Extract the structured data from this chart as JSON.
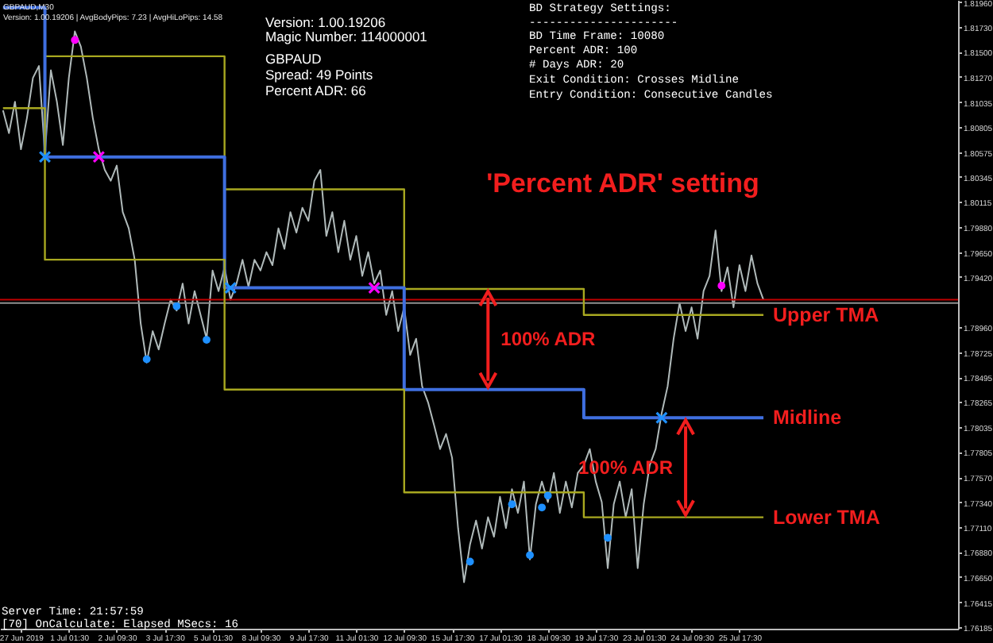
{
  "chart_data": {
    "type": "line",
    "title": "GBPAUD,M30",
    "subtitle": "Version: 1.00.19206 | AvgBodyPips: 7.23 | AvgHiLoPips: 14.58",
    "categories": [
      null,
      null,
      null,
      "27 Jun 2019",
      null,
      null,
      null,
      null,
      null,
      null,
      null,
      "1 Jul 01:30",
      null,
      null,
      null,
      null,
      null,
      null,
      null,
      "2 Jul 09:30",
      null,
      null,
      null,
      null,
      null,
      null,
      null,
      "3 Jul 17:30",
      null,
      null,
      null,
      null,
      null,
      null,
      null,
      "5 Jul 01:30",
      null,
      null,
      null,
      null,
      null,
      null,
      null,
      "8 Jul 09:30",
      null,
      null,
      null,
      null,
      null,
      null,
      null,
      "9 Jul 17:30",
      null,
      null,
      null,
      null,
      null,
      null,
      null,
      "11 Jul 01:30",
      null,
      null,
      null,
      null,
      null,
      null,
      null,
      "12 Jul 09:30",
      null,
      null,
      null,
      null,
      null,
      null,
      null,
      "15 Jul 17:30",
      null,
      null,
      null,
      null,
      null,
      null,
      null,
      "17 Jul 01:30",
      null,
      null,
      null,
      null,
      null,
      null,
      null,
      "18 Jul 09:30",
      null,
      null,
      null,
      null,
      null,
      null,
      null,
      "19 Jul 17:30",
      null,
      null,
      null,
      null,
      null,
      null,
      null,
      "23 Jul 01:30",
      null,
      null,
      null,
      null,
      null,
      null,
      null,
      "24 Jul 09:30",
      null,
      null,
      null,
      null,
      null,
      null,
      null,
      "25 Jul 17:30",
      null,
      null,
      null,
      null,
      null,
      null,
      null,
      null,
      null,
      null,
      null,
      null,
      null,
      null,
      null,
      null,
      null,
      null,
      null,
      null,
      null,
      null,
      null,
      null,
      null,
      null,
      null,
      null,
      null,
      null,
      null,
      null,
      null,
      null,
      null,
      null
    ],
    "series": [
      {
        "color": "#b0baba",
        "values": [
          1.8096,
          1.8075,
          1.8104,
          1.806,
          1.8089,
          1.8126,
          1.8137,
          1.8056,
          1.8133,
          1.8104,
          1.8064,
          1.8126,
          1.8169,
          1.8155,
          1.8126,
          1.8089,
          1.806,
          1.8041,
          1.8031,
          1.8045,
          1.8002,
          1.7987,
          1.7958,
          1.7899,
          1.7863,
          1.7892,
          1.7875,
          1.7899,
          1.7921,
          1.7911,
          1.7936,
          1.7899,
          1.7929,
          1.7907,
          1.7885,
          1.7948,
          1.7929,
          1.7951,
          1.7921,
          1.7936,
          1.7958,
          1.7933,
          1.7958,
          1.7948,
          1.7965,
          1.7953,
          1.7987,
          1.7968,
          1.8002,
          1.7983,
          1.8006,
          1.7994,
          1.8031,
          1.8041,
          1.798,
          1.8002,
          1.7965,
          1.7994,
          1.7958,
          1.798,
          1.7943,
          1.7965,
          1.7936,
          1.7948,
          1.7907,
          1.7929,
          1.7892,
          1.7914,
          1.787,
          1.7885,
          1.7841,
          1.7826,
          1.7805,
          1.7783,
          1.7797,
          1.7775,
          1.771,
          1.766,
          1.7695,
          1.7717,
          1.7691,
          1.772,
          1.7702,
          1.7739,
          1.771,
          1.7746,
          1.7724,
          1.7753,
          1.7681,
          1.7732,
          1.7753,
          1.7734,
          1.7761,
          1.7724,
          1.7753,
          1.7729,
          1.7761,
          1.7768,
          1.7783,
          1.7753,
          1.7734,
          1.7673,
          1.7732,
          1.7753,
          1.772,
          1.7746,
          1.7673,
          1.7732,
          1.7768,
          1.7783,
          1.7816,
          1.7841,
          1.7885,
          1.7918,
          1.7892,
          1.7914,
          1.7885,
          1.7929,
          1.7943,
          1.7985,
          1.7929,
          1.7951,
          1.7914,
          1.7953,
          1.7929,
          1.7962,
          1.7936,
          1.7921,
          null,
          null,
          null,
          null,
          null,
          null,
          null,
          null,
          null,
          null,
          null,
          null,
          null,
          null,
          null,
          null,
          null,
          null,
          null,
          null,
          null,
          null,
          null,
          null,
          null,
          null,
          null,
          null,
          null,
          null,
          null,
          null
        ]
      },
      {
        "name": "Upper TMA",
        "type": "step",
        "color": "#a8a820",
        "values": [
          null,
          null,
          null,
          null,
          null,
          null,
          null,
          1.8146,
          1.8146,
          1.8146,
          1.8146,
          1.8146,
          1.8146,
          1.8146,
          1.8146,
          1.8146,
          1.8146,
          1.8146,
          1.8146,
          1.8146,
          1.8146,
          1.8146,
          1.8146,
          1.8146,
          1.8146,
          1.8146,
          1.8146,
          1.8146,
          1.8146,
          1.8146,
          1.8146,
          1.8146,
          1.8146,
          1.8146,
          1.8146,
          1.8146,
          1.8146,
          1.8023,
          1.8023,
          1.8023,
          1.8023,
          1.8023,
          1.8023,
          1.8023,
          1.8023,
          1.8023,
          1.8023,
          1.8023,
          1.8023,
          1.8023,
          1.8023,
          1.8023,
          1.8023,
          1.8023,
          1.8023,
          1.8023,
          1.8023,
          1.8023,
          1.8023,
          1.8023,
          1.8023,
          1.8023,
          1.8023,
          1.8023,
          1.8023,
          1.8023,
          1.8023,
          1.7931,
          1.7931,
          1.7931,
          1.7931,
          1.7931,
          1.7931,
          1.7931,
          1.7931,
          1.7931,
          1.7931,
          1.7931,
          1.7931,
          1.7931,
          1.7931,
          1.7931,
          1.7931,
          1.7931,
          1.7931,
          1.7931,
          1.7931,
          1.7931,
          1.7931,
          1.7931,
          1.7931,
          1.7931,
          1.7931,
          1.7931,
          1.7931,
          1.7931,
          1.7931,
          1.7907,
          1.7907,
          1.7907,
          1.7907,
          1.7907,
          1.7907,
          1.7907,
          1.7907,
          1.7907,
          1.7907,
          1.7907,
          1.7907,
          1.7907,
          1.7907,
          1.7907,
          1.7907,
          1.7907,
          1.7907,
          1.7907,
          1.7907,
          1.7907,
          1.7907,
          1.7907,
          1.7907,
          1.7907,
          1.7907,
          1.7907,
          1.7907,
          1.7907,
          1.7907,
          1.7907,
          null,
          null,
          null,
          null,
          null,
          null,
          null,
          null,
          null,
          null,
          null,
          null,
          null,
          null,
          null,
          null,
          null,
          null,
          null,
          null,
          null,
          null,
          null,
          null,
          null,
          null,
          null,
          null,
          null,
          null,
          null,
          null
        ]
      },
      {
        "name": "Midline",
        "type": "step",
        "color": "#3f6fe0",
        "values": [
          1.8191,
          1.8191,
          1.8191,
          1.8191,
          1.8191,
          1.8191,
          1.8191,
          1.8053,
          1.8053,
          1.8053,
          1.8053,
          1.8053,
          1.8053,
          1.8053,
          1.8053,
          1.8053,
          1.8053,
          1.8053,
          1.8053,
          1.8053,
          1.8053,
          1.8053,
          1.8053,
          1.8053,
          1.8053,
          1.8053,
          1.8053,
          1.8053,
          1.8053,
          1.8053,
          1.8053,
          1.8053,
          1.8053,
          1.8053,
          1.8053,
          1.8053,
          1.8053,
          1.7932,
          1.7932,
          1.7932,
          1.7932,
          1.7932,
          1.7932,
          1.7932,
          1.7932,
          1.7932,
          1.7932,
          1.7932,
          1.7932,
          1.7932,
          1.7932,
          1.7932,
          1.7932,
          1.7932,
          1.7932,
          1.7932,
          1.7932,
          1.7932,
          1.7932,
          1.7932,
          1.7932,
          1.7932,
          1.7932,
          1.7932,
          1.7932,
          1.7932,
          1.7932,
          1.7838,
          1.7838,
          1.7838,
          1.7838,
          1.7838,
          1.7838,
          1.7838,
          1.7838,
          1.7838,
          1.7838,
          1.7838,
          1.7838,
          1.7838,
          1.7838,
          1.7838,
          1.7838,
          1.7838,
          1.7838,
          1.7838,
          1.7838,
          1.7838,
          1.7838,
          1.7838,
          1.7838,
          1.7838,
          1.7838,
          1.7838,
          1.7838,
          1.7838,
          1.7838,
          1.7812,
          1.7812,
          1.7812,
          1.7812,
          1.7812,
          1.7812,
          1.7812,
          1.7812,
          1.7812,
          1.7812,
          1.7812,
          1.7812,
          1.7812,
          1.7812,
          1.7812,
          1.7812,
          1.7812,
          1.7812,
          1.7812,
          1.7812,
          1.7812,
          1.7812,
          1.7812,
          1.7812,
          1.7812,
          1.7812,
          1.7812,
          1.7812,
          1.7812,
          1.7812,
          1.7812,
          null,
          null,
          null,
          null,
          null,
          null,
          null,
          null,
          null,
          null,
          null,
          null,
          null,
          null,
          null,
          null,
          null,
          null,
          null,
          null,
          null,
          null,
          null,
          null,
          null,
          null,
          null,
          null,
          null,
          null,
          null,
          null
        ]
      },
      {
        "name": "Lower TMA",
        "type": "step",
        "color": "#a8a820",
        "values": [
          1.8098,
          1.8098,
          1.8098,
          1.8098,
          1.8098,
          1.8098,
          1.8098,
          1.7958,
          1.7958,
          1.7958,
          1.7958,
          1.7958,
          1.7958,
          1.7958,
          1.7958,
          1.7958,
          1.7958,
          1.7958,
          1.7958,
          1.7958,
          1.7958,
          1.7958,
          1.7958,
          1.7958,
          1.7958,
          1.7958,
          1.7958,
          1.7958,
          1.7958,
          1.7958,
          1.7958,
          1.7958,
          1.7958,
          1.7958,
          1.7958,
          1.7958,
          1.7958,
          1.7838,
          1.7838,
          1.7838,
          1.7838,
          1.7838,
          1.7838,
          1.7838,
          1.7838,
          1.7838,
          1.7838,
          1.7838,
          1.7838,
          1.7838,
          1.7838,
          1.7838,
          1.7838,
          1.7838,
          1.7838,
          1.7838,
          1.7838,
          1.7838,
          1.7838,
          1.7838,
          1.7838,
          1.7838,
          1.7838,
          1.7838,
          1.7838,
          1.7838,
          1.7838,
          1.7743,
          1.7743,
          1.7743,
          1.7743,
          1.7743,
          1.7743,
          1.7743,
          1.7743,
          1.7743,
          1.7743,
          1.7743,
          1.7743,
          1.7743,
          1.7743,
          1.7743,
          1.7743,
          1.7743,
          1.7743,
          1.7743,
          1.7743,
          1.7743,
          1.7743,
          1.7743,
          1.7743,
          1.7743,
          1.7743,
          1.7743,
          1.7743,
          1.7743,
          1.7743,
          1.772,
          1.772,
          1.772,
          1.772,
          1.772,
          1.772,
          1.772,
          1.772,
          1.772,
          1.772,
          1.772,
          1.772,
          1.772,
          1.772,
          1.772,
          1.772,
          1.772,
          1.772,
          1.772,
          1.772,
          1.772,
          1.772,
          1.772,
          1.772,
          1.772,
          1.772,
          1.772,
          1.772,
          1.772,
          1.772,
          1.772,
          null,
          null,
          null,
          null,
          null,
          null,
          null,
          null,
          null,
          null,
          null,
          null,
          null,
          null,
          null,
          null,
          null,
          null,
          null,
          null,
          null,
          null,
          null,
          null,
          null,
          null,
          null,
          null,
          null,
          null,
          null,
          null
        ]
      },
      {
        "type": "scatter",
        "marker": "circle",
        "color": "#ff00ff",
        "values": [
          null,
          null,
          null,
          null,
          null,
          null,
          null,
          null,
          null,
          null,
          null,
          null,
          1.8161,
          null,
          null,
          null,
          null,
          null,
          null,
          null,
          null,
          null,
          null,
          null,
          null,
          null,
          null,
          null,
          null,
          null,
          null,
          null,
          null,
          null,
          null,
          null,
          null,
          null,
          null,
          null,
          null,
          null,
          null,
          null,
          null,
          null,
          null,
          null,
          null,
          null,
          null,
          null,
          null,
          null,
          null,
          null,
          null,
          null,
          null,
          null,
          null,
          null,
          null,
          null,
          null,
          null,
          null,
          null,
          null,
          null,
          null,
          null,
          null,
          null,
          null,
          null,
          null,
          null,
          null,
          null,
          null,
          null,
          null,
          null,
          null,
          null,
          null,
          null,
          null,
          null,
          null,
          null,
          null,
          null,
          null,
          null,
          null,
          null,
          null,
          null,
          null,
          null,
          null,
          null,
          null,
          null,
          null,
          null,
          null,
          null,
          null,
          null,
          null,
          null,
          null,
          null,
          null,
          null,
          null,
          null,
          1.7934,
          null,
          null,
          null,
          null,
          null,
          null,
          null,
          null,
          null,
          null,
          null,
          null,
          null,
          null,
          null,
          null,
          null,
          null,
          null,
          null,
          null,
          null,
          null,
          null,
          null,
          null,
          null,
          null,
          null,
          null,
          null,
          null,
          null,
          null,
          null,
          null,
          null,
          null,
          null
        ]
      },
      {
        "type": "scatter",
        "marker": "circle",
        "color": "#1e90ff",
        "values": [
          null,
          null,
          null,
          null,
          null,
          null,
          null,
          null,
          null,
          null,
          null,
          null,
          null,
          null,
          null,
          null,
          null,
          null,
          null,
          null,
          null,
          null,
          null,
          null,
          1.7866,
          null,
          null,
          null,
          null,
          1.7915,
          null,
          null,
          null,
          null,
          1.7884,
          null,
          null,
          null,
          null,
          null,
          null,
          null,
          null,
          null,
          null,
          null,
          null,
          null,
          null,
          null,
          null,
          null,
          null,
          null,
          null,
          null,
          null,
          null,
          null,
          null,
          null,
          null,
          null,
          null,
          null,
          null,
          null,
          null,
          null,
          null,
          null,
          null,
          null,
          null,
          null,
          null,
          null,
          null,
          1.7679,
          null,
          null,
          null,
          null,
          null,
          null,
          1.7732,
          null,
          null,
          1.7685,
          null,
          1.7729,
          1.774,
          null,
          null,
          null,
          null,
          null,
          null,
          null,
          null,
          null,
          1.7701,
          null,
          null,
          null,
          null,
          null,
          null,
          null,
          null,
          null,
          null,
          null,
          null,
          null,
          null,
          null,
          null,
          null,
          null,
          null,
          null,
          null,
          null,
          null,
          null,
          null,
          null,
          null,
          null,
          null,
          null,
          null,
          null,
          null,
          null,
          null,
          null,
          null,
          null,
          null,
          null,
          null,
          null,
          null,
          null,
          null,
          null,
          null,
          null,
          null,
          null,
          null,
          null,
          null,
          null,
          null,
          null,
          null,
          null
        ]
      },
      {
        "type": "scatter",
        "marker": "cross",
        "color": "#ff00ff",
        "values": [
          null,
          null,
          null,
          null,
          null,
          null,
          null,
          null,
          null,
          null,
          null,
          null,
          null,
          null,
          null,
          null,
          1.8053,
          null,
          null,
          null,
          null,
          null,
          null,
          null,
          null,
          null,
          null,
          null,
          null,
          null,
          null,
          null,
          null,
          null,
          null,
          null,
          null,
          null,
          null,
          null,
          null,
          null,
          null,
          null,
          null,
          null,
          null,
          null,
          null,
          null,
          null,
          null,
          null,
          null,
          null,
          null,
          null,
          null,
          null,
          null,
          null,
          null,
          1.7932,
          null,
          null,
          null,
          null,
          null,
          null,
          null,
          null,
          null,
          null,
          null,
          null,
          null,
          null,
          null,
          null,
          null,
          null,
          null,
          null,
          null,
          null,
          null,
          null,
          null,
          null,
          null,
          null,
          null,
          null,
          null,
          null,
          null,
          null,
          null,
          null,
          null,
          null,
          null,
          null,
          null,
          null,
          null,
          null,
          null,
          null,
          null,
          null,
          null,
          null,
          null,
          null,
          null,
          null,
          null,
          null,
          null,
          null,
          null,
          null,
          null,
          null,
          null,
          null,
          null,
          null,
          null,
          null,
          null,
          null,
          null,
          null,
          null,
          null,
          null,
          null,
          null,
          null,
          null,
          null,
          null,
          null,
          null,
          null,
          null,
          null,
          null,
          null,
          null,
          null,
          null,
          null,
          null,
          null,
          null,
          null,
          null
        ]
      },
      {
        "type": "scatter",
        "marker": "cross",
        "color": "#1e90ff",
        "values": [
          null,
          null,
          null,
          null,
          null,
          null,
          null,
          1.8053,
          null,
          null,
          null,
          null,
          null,
          null,
          null,
          null,
          null,
          null,
          null,
          null,
          null,
          null,
          null,
          null,
          null,
          null,
          null,
          null,
          null,
          null,
          null,
          null,
          null,
          null,
          null,
          null,
          null,
          null,
          1.7932,
          null,
          null,
          null,
          null,
          null,
          null,
          null,
          null,
          null,
          null,
          null,
          null,
          null,
          null,
          null,
          null,
          null,
          null,
          null,
          null,
          null,
          null,
          null,
          null,
          null,
          null,
          null,
          null,
          null,
          null,
          null,
          null,
          null,
          null,
          null,
          null,
          null,
          null,
          null,
          null,
          null,
          null,
          null,
          null,
          null,
          null,
          null,
          null,
          null,
          null,
          null,
          null,
          null,
          null,
          null,
          null,
          null,
          null,
          null,
          null,
          null,
          null,
          null,
          null,
          null,
          null,
          null,
          null,
          null,
          null,
          null,
          1.7812,
          null,
          null,
          null,
          null,
          null,
          null,
          null,
          null,
          null,
          null,
          null,
          null,
          null,
          null,
          null,
          null,
          null,
          null,
          null,
          null,
          null,
          null,
          null,
          null,
          null,
          null,
          null,
          null,
          null,
          null,
          null,
          null,
          null,
          null,
          null,
          null,
          null,
          null,
          null,
          null,
          null,
          null,
          null,
          null,
          null,
          null,
          null,
          null,
          null
        ]
      }
    ],
    "ylim": [
      1.7617,
      1.8198
    ],
    "yticks": [
      {
        "value": 1.8196,
        "label": "1.81960"
      },
      {
        "value": 1.8173,
        "label": "1.81730"
      },
      {
        "value": 1.815,
        "label": "1.81500"
      },
      {
        "value": 1.8127,
        "label": "1.81270"
      },
      {
        "value": 1.81035,
        "label": "1.81035"
      },
      {
        "value": 1.80805,
        "label": "1.80805"
      },
      {
        "value": 1.80575,
        "label": "1.80575"
      },
      {
        "value": 1.80345,
        "label": "1.80345"
      },
      {
        "value": 1.80115,
        "label": "1.80115"
      },
      {
        "value": 1.7988,
        "label": "1.79880"
      },
      {
        "value": 1.7965,
        "label": "1.79650"
      },
      {
        "value": 1.7942,
        "label": "1.79420"
      },
      {
        "value": 1.7896,
        "label": "1.78960"
      },
      {
        "value": 1.78725,
        "label": "1.78725"
      },
      {
        "value": 1.78495,
        "label": "1.78495"
      },
      {
        "value": 1.78265,
        "label": "1.78265"
      },
      {
        "value": 1.78035,
        "label": "1.78035"
      },
      {
        "value": 1.77805,
        "label": "1.77805"
      },
      {
        "value": 1.7757,
        "label": "1.77570"
      },
      {
        "value": 1.7734,
        "label": "1.77340"
      },
      {
        "value": 1.7711,
        "label": "1.77110"
      },
      {
        "value": 1.7688,
        "label": "1.76880"
      },
      {
        "value": 1.7665,
        "label": "1.76650"
      },
      {
        "value": 1.76415,
        "label": "1.76415"
      },
      {
        "value": 1.76185,
        "label": "1.76185"
      }
    ],
    "ref_lines": [
      {
        "axis": "y",
        "value": 1.7921,
        "color": "#c00000"
      },
      {
        "axis": "y",
        "value": 1.7918,
        "color": "#909090"
      }
    ],
    "annotations": [
      "Version: 1.00.19206",
      "Magic Number: 114000001",
      "GBPAUD",
      "Spread: 49 Points",
      "Percent ADR: 66",
      "BD Strategy Settings:",
      "----------------------",
      "BD Time Frame: 10080",
      "Percent ADR: 100",
      "# Days ADR: 20",
      "Exit Condition: Crosses Midline",
      "Entry Condition: Consecutive Candles",
      "'Percent ADR' setting",
      "100% ADR",
      "100% ADR",
      "Server Time: 21:57:59",
      "[70] OnCalculate: Elapsed MSecs: 16"
    ]
  }
}
